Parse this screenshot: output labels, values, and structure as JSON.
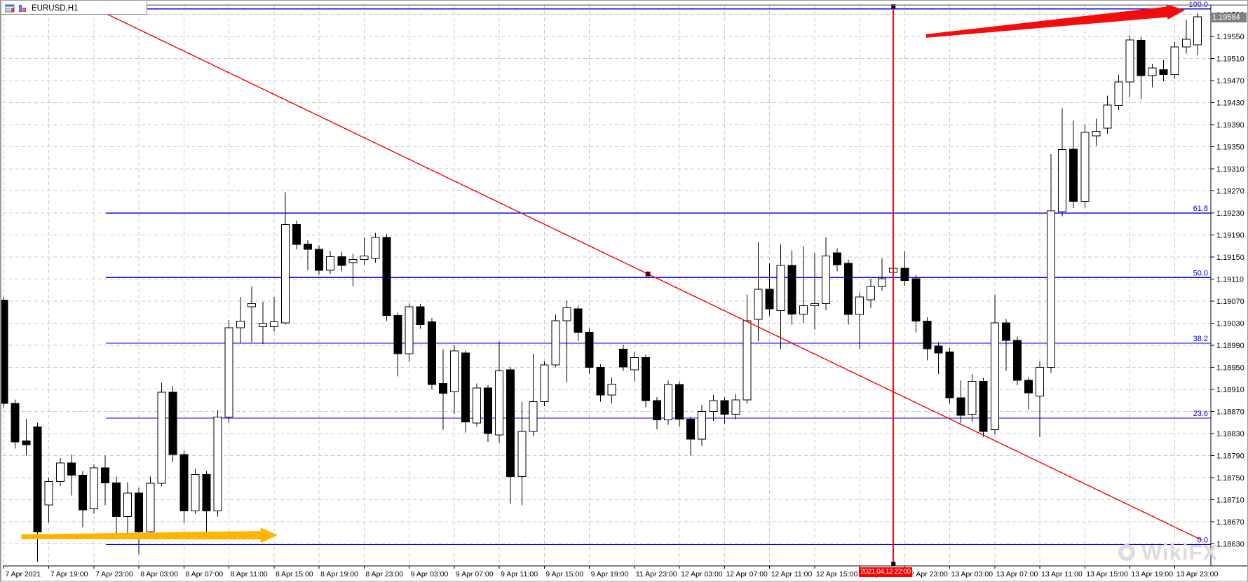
{
  "window": {
    "title": "EURUSD,H1",
    "icons": [
      "chart-list-icon",
      "bar-chart-icon"
    ]
  },
  "price_axis": {
    "current_price": "1.19584",
    "current_price_bg": "#808080",
    "labels": [
      "1.19590",
      "1.19550",
      "1.19510",
      "1.19470",
      "1.19430",
      "1.19390",
      "1.19350",
      "1.19310",
      "1.19270",
      "1.19230",
      "1.19190",
      "1.19150",
      "1.19110",
      "1.19070",
      "1.19030",
      "1.18990",
      "1.18950",
      "1.18910",
      "1.18870",
      "1.18830",
      "1.18790",
      "1.18750",
      "1.18710",
      "1.18670",
      "1.18630"
    ]
  },
  "time_axis": {
    "labels": [
      "7 Apr 2021",
      "7 Apr 19:00",
      "7 Apr 23:00",
      "8 Apr 03:00",
      "8 Apr 07:00",
      "8 Apr 11:00",
      "8 Apr 15:00",
      "8 Apr 19:00",
      "8 Apr 23:00",
      "9 Apr 03:00",
      "9 Apr 07:00",
      "9 Apr 11:00",
      "9 Apr 15:00",
      "9 Apr 19:00",
      "11 Apr 23:00",
      "12 Apr 03:00",
      "12 Apr 07:00",
      "12 Apr 11:00",
      "12 Apr 15:00",
      "12 Apr 19:00",
      "12 Apr 23:00",
      "13 Apr 03:00",
      "13 Apr 07:00",
      "13 Apr 11:00",
      "13 Apr 15:00",
      "13 Apr 19:00",
      "13 Apr 23:00"
    ],
    "marker_label": "2021.04.12 22:00",
    "marker_bg": "#ff0000"
  },
  "fibonacci": {
    "color": "#0000ee",
    "levels": [
      {
        "label": "0.0",
        "price": 1.18629
      },
      {
        "label": "23.6",
        "price": 1.18858
      },
      {
        "label": "38.2",
        "price": 1.18994
      },
      {
        "label": "50.0",
        "price": 1.19113
      },
      {
        "label": "61.8",
        "price": 1.1923
      },
      {
        "label": "100.0",
        "price": 1.196
      }
    ]
  },
  "annotations": {
    "trendline": {
      "color": "#ff0000",
      "from": {
        "index": 8.0,
        "price": 1.19602
      },
      "to": {
        "index": 106.4,
        "price": 1.18637
      }
    },
    "vertical_line": {
      "color": "#ff0000",
      "index": 79,
      "label": "2021.04.12 22:00"
    },
    "arrows": [
      {
        "name": "support-arrow",
        "color": "#ffb400",
        "from": {
          "index": 1.55,
          "price": 1.18643
        },
        "to": {
          "index": 24.3,
          "price": 1.18646
        },
        "tail_w": 3.5,
        "head_w": 11,
        "head_len": 24,
        "body_w": 6
      },
      {
        "name": "rally-arrow",
        "color": "#f40b0b",
        "from": {
          "index": 81.9,
          "price": 1.19551
        },
        "to": {
          "index": 104.9,
          "price": 1.19598
        },
        "tail_w": 2.5,
        "head_w": 11,
        "head_len": 26,
        "body_w": 7.5
      }
    ]
  },
  "watermark": {
    "text": "WikiFX"
  },
  "colors": {
    "bull": "#ffffff",
    "bear": "#000000",
    "outline": "#000000",
    "grid": "#c8c8c8",
    "axis": "#000000",
    "fib": "#0000ee",
    "red": "#ff0000"
  },
  "chart_data": {
    "type": "candlestick",
    "symbol": "EURUSD",
    "timeframe": "H1",
    "title": "EURUSD,H1",
    "ylim": [
      1.1859,
      1.19615
    ],
    "grid": true,
    "current_price": 1.19584,
    "candles": [
      {
        "t": "7 Apr 15:00",
        "o": 1.19072,
        "h": 1.19078,
        "l": 1.18877,
        "c": 1.18885
      },
      {
        "t": "7 Apr 16:00",
        "o": 1.18885,
        "h": 1.18892,
        "l": 1.18803,
        "c": 1.18815
      },
      {
        "t": "7 Apr 17:00",
        "o": 1.18817,
        "h": 1.18857,
        "l": 1.1879,
        "c": 1.1881
      },
      {
        "t": "7 Apr 18:00",
        "o": 1.18842,
        "h": 1.1885,
        "l": 1.18598,
        "c": 1.18652
      },
      {
        "t": "7 Apr 19:00",
        "o": 1.18701,
        "h": 1.1875,
        "l": 1.18669,
        "c": 1.18743
      },
      {
        "t": "7 Apr 20:00",
        "o": 1.18743,
        "h": 1.18786,
        "l": 1.18735,
        "c": 1.18777
      },
      {
        "t": "7 Apr 21:00",
        "o": 1.18777,
        "h": 1.18792,
        "l": 1.18718,
        "c": 1.18755
      },
      {
        "t": "7 Apr 22:00",
        "o": 1.18755,
        "h": 1.18762,
        "l": 1.1866,
        "c": 1.18692
      },
      {
        "t": "7 Apr 23:00",
        "o": 1.18694,
        "h": 1.18774,
        "l": 1.18685,
        "c": 1.18768
      },
      {
        "t": "8 Apr 00:00",
        "o": 1.18768,
        "h": 1.1879,
        "l": 1.187,
        "c": 1.18741
      },
      {
        "t": "8 Apr 01:00",
        "o": 1.18741,
        "h": 1.18752,
        "l": 1.18648,
        "c": 1.1868
      },
      {
        "t": "8 Apr 02:00",
        "o": 1.1868,
        "h": 1.18742,
        "l": 1.1864,
        "c": 1.18722
      },
      {
        "t": "8 Apr 03:00",
        "o": 1.18722,
        "h": 1.18732,
        "l": 1.18612,
        "c": 1.18652
      },
      {
        "t": "8 Apr 04:00",
        "o": 1.18652,
        "h": 1.18752,
        "l": 1.18645,
        "c": 1.1874
      },
      {
        "t": "8 Apr 05:00",
        "o": 1.1874,
        "h": 1.18922,
        "l": 1.18735,
        "c": 1.18905
      },
      {
        "t": "8 Apr 06:00",
        "o": 1.18905,
        "h": 1.18916,
        "l": 1.18778,
        "c": 1.18792
      },
      {
        "t": "8 Apr 07:00",
        "o": 1.18792,
        "h": 1.188,
        "l": 1.18668,
        "c": 1.1869
      },
      {
        "t": "8 Apr 08:00",
        "o": 1.1869,
        "h": 1.18766,
        "l": 1.18684,
        "c": 1.18756
      },
      {
        "t": "8 Apr 09:00",
        "o": 1.18756,
        "h": 1.18762,
        "l": 1.18645,
        "c": 1.1869
      },
      {
        "t": "8 Apr 10:00",
        "o": 1.1869,
        "h": 1.18872,
        "l": 1.1868,
        "c": 1.1886
      },
      {
        "t": "8 Apr 11:00",
        "o": 1.1886,
        "h": 1.19036,
        "l": 1.1885,
        "c": 1.19022
      },
      {
        "t": "8 Apr 12:00",
        "o": 1.19022,
        "h": 1.19078,
        "l": 1.18995,
        "c": 1.19034
      },
      {
        "t": "8 Apr 13:00",
        "o": 1.1906,
        "h": 1.19097,
        "l": 1.18996,
        "c": 1.19066
      },
      {
        "t": "8 Apr 14:00",
        "o": 1.19024,
        "h": 1.19069,
        "l": 1.18993,
        "c": 1.1903
      },
      {
        "t": "8 Apr 15:00",
        "o": 1.19024,
        "h": 1.19078,
        "l": 1.19015,
        "c": 1.19033
      },
      {
        "t": "8 Apr 16:00",
        "o": 1.19031,
        "h": 1.19268,
        "l": 1.19028,
        "c": 1.19209
      },
      {
        "t": "8 Apr 17:00",
        "o": 1.19209,
        "h": 1.19216,
        "l": 1.19164,
        "c": 1.19173
      },
      {
        "t": "8 Apr 18:00",
        "o": 1.19174,
        "h": 1.19181,
        "l": 1.19126,
        "c": 1.19164
      },
      {
        "t": "8 Apr 19:00",
        "o": 1.19164,
        "h": 1.19171,
        "l": 1.19118,
        "c": 1.19126
      },
      {
        "t": "8 Apr 20:00",
        "o": 1.19126,
        "h": 1.19161,
        "l": 1.1912,
        "c": 1.19151
      },
      {
        "t": "8 Apr 21:00",
        "o": 1.19151,
        "h": 1.1916,
        "l": 1.19124,
        "c": 1.19135
      },
      {
        "t": "8 Apr 22:00",
        "o": 1.1914,
        "h": 1.19156,
        "l": 1.19097,
        "c": 1.19146
      },
      {
        "t": "8 Apr 23:00",
        "o": 1.19146,
        "h": 1.19186,
        "l": 1.19136,
        "c": 1.19152
      },
      {
        "t": "9 Apr 00:00",
        "o": 1.19148,
        "h": 1.19194,
        "l": 1.1914,
        "c": 1.19186
      },
      {
        "t": "9 Apr 01:00",
        "o": 1.19186,
        "h": 1.19192,
        "l": 1.19035,
        "c": 1.19044
      },
      {
        "t": "9 Apr 02:00",
        "o": 1.19044,
        "h": 1.19049,
        "l": 1.18934,
        "c": 1.18975
      },
      {
        "t": "9 Apr 03:00",
        "o": 1.18975,
        "h": 1.19066,
        "l": 1.1896,
        "c": 1.1906
      },
      {
        "t": "9 Apr 04:00",
        "o": 1.1906,
        "h": 1.19065,
        "l": 1.1902,
        "c": 1.19028
      },
      {
        "t": "9 Apr 05:00",
        "o": 1.19033,
        "h": 1.1904,
        "l": 1.1891,
        "c": 1.18919
      },
      {
        "t": "9 Apr 06:00",
        "o": 1.18921,
        "h": 1.18983,
        "l": 1.18837,
        "c": 1.18903
      },
      {
        "t": "9 Apr 07:00",
        "o": 1.18906,
        "h": 1.1899,
        "l": 1.18866,
        "c": 1.1898
      },
      {
        "t": "9 Apr 08:00",
        "o": 1.18976,
        "h": 1.18981,
        "l": 1.18832,
        "c": 1.18851
      },
      {
        "t": "9 Apr 09:00",
        "o": 1.18849,
        "h": 1.18921,
        "l": 1.18843,
        "c": 1.18913
      },
      {
        "t": "9 Apr 10:00",
        "o": 1.18913,
        "h": 1.18918,
        "l": 1.18815,
        "c": 1.1883
      },
      {
        "t": "9 Apr 11:00",
        "o": 1.18828,
        "h": 1.18997,
        "l": 1.18813,
        "c": 1.18944
      },
      {
        "t": "9 Apr 12:00",
        "o": 1.18946,
        "h": 1.18951,
        "l": 1.18703,
        "c": 1.18752
      },
      {
        "t": "9 Apr 13:00",
        "o": 1.18752,
        "h": 1.18888,
        "l": 1.187,
        "c": 1.18834
      },
      {
        "t": "9 Apr 14:00",
        "o": 1.18834,
        "h": 1.18975,
        "l": 1.18825,
        "c": 1.18888
      },
      {
        "t": "9 Apr 15:00",
        "o": 1.18888,
        "h": 1.18961,
        "l": 1.1888,
        "c": 1.18955
      },
      {
        "t": "9 Apr 16:00",
        "o": 1.18955,
        "h": 1.19046,
        "l": 1.1895,
        "c": 1.19035
      },
      {
        "t": "9 Apr 17:00",
        "o": 1.19035,
        "h": 1.19071,
        "l": 1.18923,
        "c": 1.19058
      },
      {
        "t": "9 Apr 18:00",
        "o": 1.19056,
        "h": 1.19062,
        "l": 1.18998,
        "c": 1.19014
      },
      {
        "t": "9 Apr 19:00",
        "o": 1.19014,
        "h": 1.19021,
        "l": 1.18938,
        "c": 1.1895
      },
      {
        "t": "9 Apr 20:00",
        "o": 1.1895,
        "h": 1.18956,
        "l": 1.18888,
        "c": 1.189
      },
      {
        "t": "9 Apr 21:00",
        "o": 1.189,
        "h": 1.18932,
        "l": 1.18885,
        "c": 1.1892
      },
      {
        "t": "11 Apr 22:00",
        "o": 1.18983,
        "h": 1.18991,
        "l": 1.18944,
        "c": 1.18951
      },
      {
        "t": "11 Apr 23:00",
        "o": 1.18946,
        "h": 1.18979,
        "l": 1.18924,
        "c": 1.18968
      },
      {
        "t": "12 Apr 00:00",
        "o": 1.18968,
        "h": 1.18973,
        "l": 1.18878,
        "c": 1.1889
      },
      {
        "t": "12 Apr 01:00",
        "o": 1.1889,
        "h": 1.18896,
        "l": 1.18838,
        "c": 1.18855
      },
      {
        "t": "12 Apr 02:00",
        "o": 1.18855,
        "h": 1.18926,
        "l": 1.18846,
        "c": 1.18919
      },
      {
        "t": "12 Apr 03:00",
        "o": 1.18919,
        "h": 1.18925,
        "l": 1.18843,
        "c": 1.18856
      },
      {
        "t": "12 Apr 04:00",
        "o": 1.18856,
        "h": 1.18861,
        "l": 1.1879,
        "c": 1.1882
      },
      {
        "t": "12 Apr 05:00",
        "o": 1.1882,
        "h": 1.18882,
        "l": 1.18808,
        "c": 1.1887
      },
      {
        "t": "12 Apr 06:00",
        "o": 1.1887,
        "h": 1.18901,
        "l": 1.18853,
        "c": 1.1889
      },
      {
        "t": "12 Apr 07:00",
        "o": 1.1889,
        "h": 1.18896,
        "l": 1.18848,
        "c": 1.18865
      },
      {
        "t": "12 Apr 08:00",
        "o": 1.18865,
        "h": 1.18902,
        "l": 1.18856,
        "c": 1.18891
      },
      {
        "t": "12 Apr 09:00",
        "o": 1.18891,
        "h": 1.19082,
        "l": 1.18884,
        "c": 1.19035
      },
      {
        "t": "12 Apr 10:00",
        "o": 1.19037,
        "h": 1.19177,
        "l": 1.18998,
        "c": 1.19092
      },
      {
        "t": "12 Apr 11:00",
        "o": 1.19092,
        "h": 1.19139,
        "l": 1.19044,
        "c": 1.19056
      },
      {
        "t": "12 Apr 12:00",
        "o": 1.19053,
        "h": 1.19173,
        "l": 1.18984,
        "c": 1.19135
      },
      {
        "t": "12 Apr 13:00",
        "o": 1.19135,
        "h": 1.19162,
        "l": 1.19028,
        "c": 1.19047
      },
      {
        "t": "12 Apr 14:00",
        "o": 1.19047,
        "h": 1.1917,
        "l": 1.19031,
        "c": 1.19062
      },
      {
        "t": "12 Apr 15:00",
        "o": 1.19062,
        "h": 1.19158,
        "l": 1.19019,
        "c": 1.19066
      },
      {
        "t": "12 Apr 16:00",
        "o": 1.19066,
        "h": 1.19186,
        "l": 1.19054,
        "c": 1.19152
      },
      {
        "t": "12 Apr 17:00",
        "o": 1.19158,
        "h": 1.19166,
        "l": 1.19124,
        "c": 1.19136
      },
      {
        "t": "12 Apr 18:00",
        "o": 1.19139,
        "h": 1.19146,
        "l": 1.19028,
        "c": 1.19046
      },
      {
        "t": "12 Apr 19:00",
        "o": 1.19046,
        "h": 1.19086,
        "l": 1.18984,
        "c": 1.19078
      },
      {
        "t": "12 Apr 20:00",
        "o": 1.19073,
        "h": 1.19111,
        "l": 1.19058,
        "c": 1.19097
      },
      {
        "t": "12 Apr 21:00",
        "o": 1.19097,
        "h": 1.19148,
        "l": 1.19089,
        "c": 1.19111
      },
      {
        "t": "12 Apr 22:00",
        "o": 1.19122,
        "h": 1.19141,
        "l": 1.19108,
        "c": 1.1913
      },
      {
        "t": "12 Apr 23:00",
        "o": 1.1913,
        "h": 1.19161,
        "l": 1.19098,
        "c": 1.19108
      },
      {
        "t": "13 Apr 00:00",
        "o": 1.19111,
        "h": 1.19118,
        "l": 1.19014,
        "c": 1.19034
      },
      {
        "t": "13 Apr 01:00",
        "o": 1.19034,
        "h": 1.19041,
        "l": 1.18963,
        "c": 1.18984
      },
      {
        "t": "13 Apr 02:00",
        "o": 1.18989,
        "h": 1.18996,
        "l": 1.18938,
        "c": 1.18976
      },
      {
        "t": "13 Apr 03:00",
        "o": 1.18978,
        "h": 1.18985,
        "l": 1.18884,
        "c": 1.18895
      },
      {
        "t": "13 Apr 04:00",
        "o": 1.18895,
        "h": 1.18926,
        "l": 1.18849,
        "c": 1.18863
      },
      {
        "t": "13 Apr 05:00",
        "o": 1.18865,
        "h": 1.18938,
        "l": 1.18852,
        "c": 1.18925
      },
      {
        "t": "13 Apr 06:00",
        "o": 1.18925,
        "h": 1.18931,
        "l": 1.18824,
        "c": 1.18834
      },
      {
        "t": "13 Apr 07:00",
        "o": 1.18837,
        "h": 1.19082,
        "l": 1.18829,
        "c": 1.19031
      },
      {
        "t": "13 Apr 08:00",
        "o": 1.19031,
        "h": 1.19038,
        "l": 1.18944,
        "c": 1.18999
      },
      {
        "t": "13 Apr 09:00",
        "o": 1.18999,
        "h": 1.19006,
        "l": 1.18918,
        "c": 1.18927
      },
      {
        "t": "13 Apr 10:00",
        "o": 1.18927,
        "h": 1.18932,
        "l": 1.18874,
        "c": 1.18904
      },
      {
        "t": "13 Apr 11:00",
        "o": 1.18898,
        "h": 1.18961,
        "l": 1.18824,
        "c": 1.1895
      },
      {
        "t": "13 Apr 12:00",
        "o": 1.1895,
        "h": 1.19337,
        "l": 1.1894,
        "c": 1.19234
      },
      {
        "t": "13 Apr 13:00",
        "o": 1.19232,
        "h": 1.1942,
        "l": 1.19224,
        "c": 1.19345
      },
      {
        "t": "13 Apr 14:00",
        "o": 1.19346,
        "h": 1.19398,
        "l": 1.19239,
        "c": 1.19251
      },
      {
        "t": "13 Apr 15:00",
        "o": 1.19251,
        "h": 1.19391,
        "l": 1.1924,
        "c": 1.19376
      },
      {
        "t": "13 Apr 16:00",
        "o": 1.1937,
        "h": 1.19401,
        "l": 1.19352,
        "c": 1.19378
      },
      {
        "t": "13 Apr 17:00",
        "o": 1.19384,
        "h": 1.19443,
        "l": 1.19374,
        "c": 1.19426
      },
      {
        "t": "13 Apr 18:00",
        "o": 1.19425,
        "h": 1.19481,
        "l": 1.19417,
        "c": 1.19468
      },
      {
        "t": "13 Apr 19:00",
        "o": 1.19468,
        "h": 1.19552,
        "l": 1.1944,
        "c": 1.19544
      },
      {
        "t": "13 Apr 20:00",
        "o": 1.19543,
        "h": 1.19549,
        "l": 1.19437,
        "c": 1.19479
      },
      {
        "t": "13 Apr 21:00",
        "o": 1.19479,
        "h": 1.19501,
        "l": 1.19458,
        "c": 1.19493
      },
      {
        "t": "13 Apr 22:00",
        "o": 1.1949,
        "h": 1.19508,
        "l": 1.19469,
        "c": 1.19481
      },
      {
        "t": "13 Apr 23:00",
        "o": 1.19481,
        "h": 1.19541,
        "l": 1.19474,
        "c": 1.19531
      },
      {
        "t": "14 Apr 00:00",
        "o": 1.19531,
        "h": 1.19581,
        "l": 1.19519,
        "c": 1.19545
      },
      {
        "t": "14 Apr 01:00",
        "o": 1.19535,
        "h": 1.19592,
        "l": 1.19516,
        "c": 1.19586
      }
    ]
  }
}
